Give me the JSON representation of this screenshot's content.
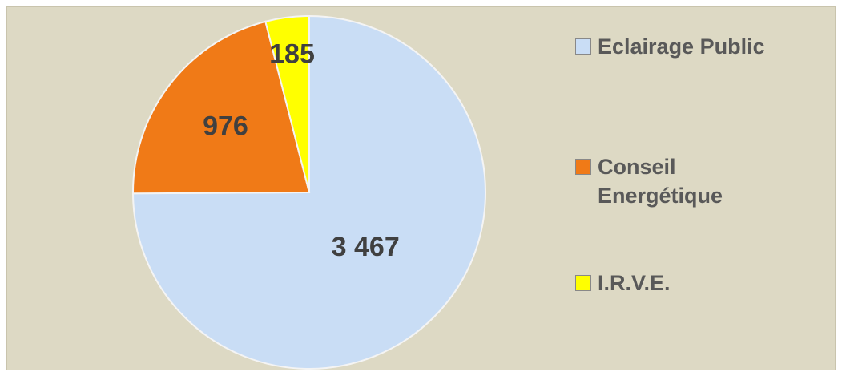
{
  "chart_data": {
    "type": "pie",
    "categories": [
      "Eclairage Public",
      "Conseil Energétique",
      "I.R.V.E."
    ],
    "values": [
      3467,
      976,
      185
    ],
    "value_labels": [
      "3 467",
      "976",
      "185"
    ],
    "colors": [
      "#c9ddf5",
      "#f07a17",
      "#ffff00"
    ],
    "legend": "right"
  }
}
